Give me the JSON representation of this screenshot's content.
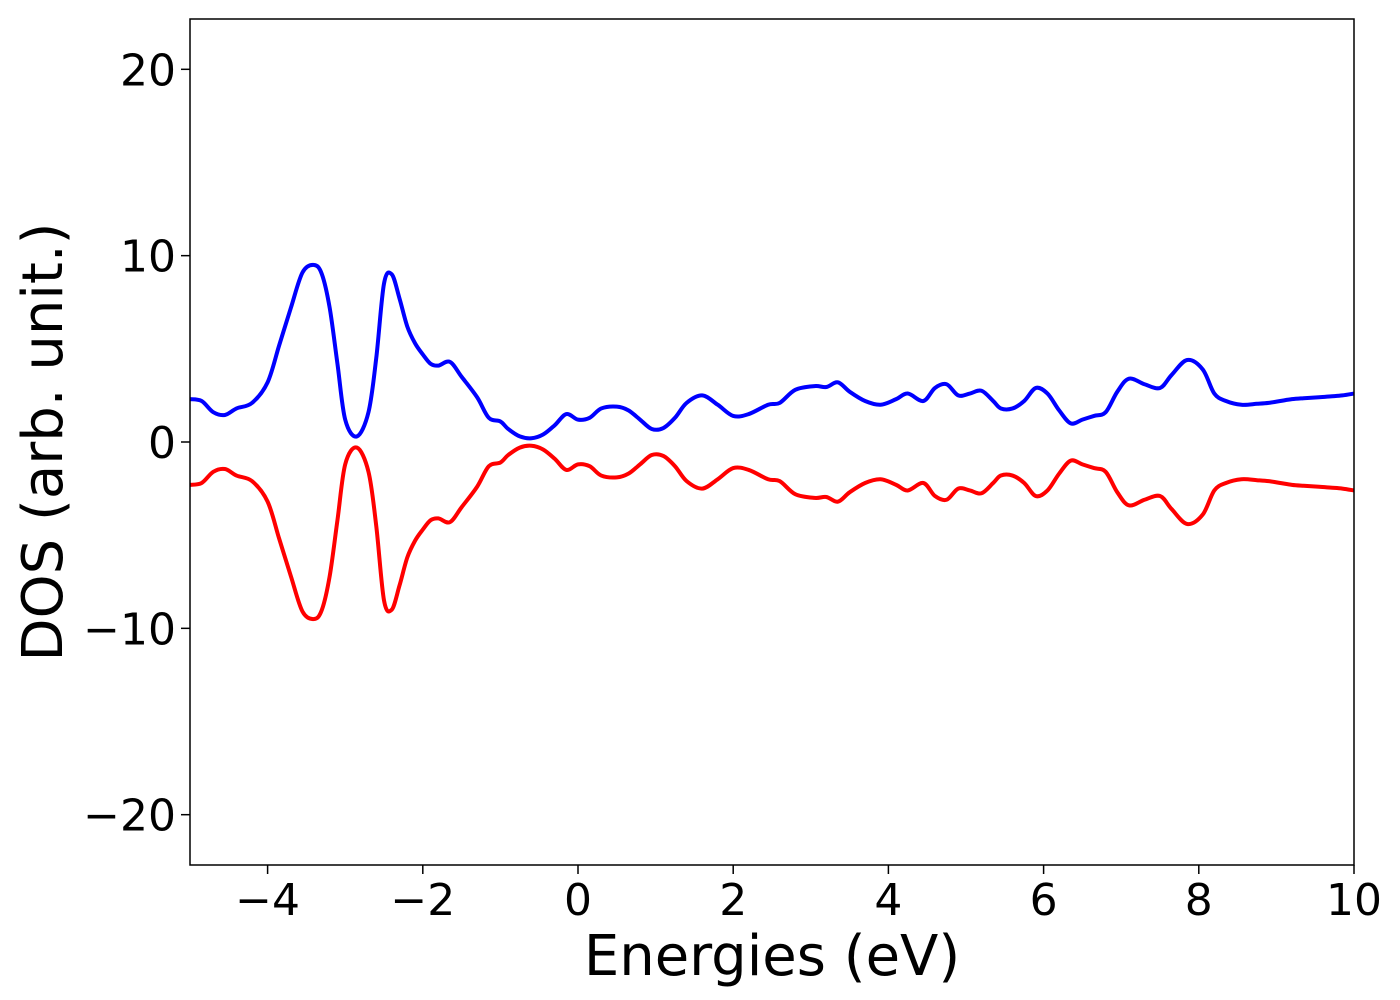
{
  "chart_data": {
    "type": "line",
    "title": "",
    "xlabel": "Energies (eV)",
    "ylabel": "DOS (arb. unit.)",
    "xlim": [
      -5,
      10
    ],
    "ylim": [
      -22.7,
      22.7
    ],
    "xticks": [
      -4,
      -2,
      0,
      2,
      4,
      6,
      8,
      10
    ],
    "xtick_labels": [
      "−4",
      "−2",
      "0",
      "2",
      "4",
      "6",
      "8",
      "10"
    ],
    "yticks": [
      -20,
      -10,
      0,
      10,
      20
    ],
    "ytick_labels": [
      "−20",
      "−10",
      "0",
      "10",
      "20"
    ],
    "grid": false,
    "legend": "none",
    "series": [
      {
        "color": "#0000ff",
        "x": [
          -5.0,
          -4.85,
          -4.7,
          -4.55,
          -4.4,
          -4.2,
          -4.0,
          -3.85,
          -3.7,
          -3.55,
          -3.4,
          -3.3,
          -3.2,
          -3.1,
          -3.0,
          -2.85,
          -2.7,
          -2.6,
          -2.5,
          -2.4,
          -2.3,
          -2.2,
          -2.1,
          -2.0,
          -1.9,
          -1.8,
          -1.65,
          -1.5,
          -1.3,
          -1.15,
          -1.0,
          -0.9,
          -0.75,
          -0.6,
          -0.45,
          -0.3,
          -0.15,
          0.0,
          0.15,
          0.3,
          0.5,
          0.65,
          0.8,
          0.95,
          1.1,
          1.25,
          1.4,
          1.6,
          1.8,
          2.0,
          2.2,
          2.45,
          2.6,
          2.8,
          3.05,
          3.2,
          3.35,
          3.5,
          3.7,
          3.9,
          4.1,
          4.25,
          4.45,
          4.6,
          4.75,
          4.9,
          5.05,
          5.2,
          5.35,
          5.45,
          5.6,
          5.75,
          5.9,
          6.05,
          6.2,
          6.35,
          6.5,
          6.65,
          6.8,
          6.95,
          7.1,
          7.3,
          7.5,
          7.65,
          7.85,
          8.05,
          8.2,
          8.35,
          8.55,
          8.75,
          8.9,
          9.05,
          9.2,
          9.35,
          9.55,
          9.7,
          9.85,
          10.0
        ],
        "y": [
          2.3,
          2.2,
          1.6,
          1.45,
          1.8,
          2.1,
          3.2,
          5.2,
          7.2,
          9.1,
          9.5,
          9.0,
          7.2,
          4.2,
          1.2,
          0.3,
          1.6,
          4.5,
          8.5,
          9.0,
          7.7,
          6.2,
          5.3,
          4.7,
          4.2,
          4.1,
          4.3,
          3.5,
          2.4,
          1.3,
          1.1,
          0.7,
          0.3,
          0.2,
          0.4,
          0.9,
          1.5,
          1.2,
          1.3,
          1.8,
          1.9,
          1.7,
          1.2,
          0.7,
          0.75,
          1.3,
          2.1,
          2.5,
          2.0,
          1.4,
          1.5,
          2.0,
          2.1,
          2.8,
          3.0,
          2.95,
          3.2,
          2.7,
          2.2,
          2.0,
          2.3,
          2.6,
          2.2,
          2.9,
          3.1,
          2.5,
          2.6,
          2.75,
          2.2,
          1.8,
          1.8,
          2.2,
          2.9,
          2.6,
          1.7,
          1.0,
          1.2,
          1.4,
          1.6,
          2.7,
          3.4,
          3.1,
          2.9,
          3.6,
          4.4,
          3.9,
          2.6,
          2.2,
          2.0,
          2.05,
          2.1,
          2.2,
          2.3,
          2.35,
          2.4,
          2.45,
          2.5,
          2.6
        ]
      },
      {
        "color": "#ff0000",
        "x": [
          -5.0,
          -4.85,
          -4.7,
          -4.55,
          -4.4,
          -4.2,
          -4.0,
          -3.85,
          -3.7,
          -3.55,
          -3.4,
          -3.3,
          -3.2,
          -3.1,
          -3.0,
          -2.85,
          -2.7,
          -2.6,
          -2.5,
          -2.4,
          -2.3,
          -2.2,
          -2.1,
          -2.0,
          -1.9,
          -1.8,
          -1.65,
          -1.5,
          -1.3,
          -1.15,
          -1.0,
          -0.9,
          -0.75,
          -0.6,
          -0.45,
          -0.3,
          -0.15,
          0.0,
          0.15,
          0.3,
          0.5,
          0.65,
          0.8,
          0.95,
          1.1,
          1.25,
          1.4,
          1.6,
          1.8,
          2.0,
          2.2,
          2.45,
          2.6,
          2.8,
          3.05,
          3.2,
          3.35,
          3.5,
          3.7,
          3.9,
          4.1,
          4.25,
          4.45,
          4.6,
          4.75,
          4.9,
          5.05,
          5.2,
          5.35,
          5.45,
          5.6,
          5.75,
          5.9,
          6.05,
          6.2,
          6.35,
          6.5,
          6.65,
          6.8,
          6.95,
          7.1,
          7.3,
          7.5,
          7.65,
          7.85,
          8.05,
          8.2,
          8.35,
          8.55,
          8.75,
          8.9,
          9.05,
          9.2,
          9.35,
          9.55,
          9.7,
          9.85,
          10.0
        ],
        "y": [
          -2.3,
          -2.2,
          -1.6,
          -1.45,
          -1.8,
          -2.1,
          -3.2,
          -5.2,
          -7.2,
          -9.1,
          -9.5,
          -9.0,
          -7.2,
          -4.2,
          -1.2,
          -0.3,
          -1.6,
          -4.5,
          -8.5,
          -9.0,
          -7.7,
          -6.2,
          -5.3,
          -4.7,
          -4.2,
          -4.1,
          -4.3,
          -3.5,
          -2.4,
          -1.3,
          -1.1,
          -0.7,
          -0.3,
          -0.2,
          -0.4,
          -0.9,
          -1.5,
          -1.2,
          -1.3,
          -1.8,
          -1.9,
          -1.7,
          -1.2,
          -0.7,
          -0.75,
          -1.3,
          -2.1,
          -2.5,
          -2.0,
          -1.4,
          -1.5,
          -2.0,
          -2.1,
          -2.8,
          -3.0,
          -2.95,
          -3.2,
          -2.7,
          -2.2,
          -2.0,
          -2.3,
          -2.6,
          -2.2,
          -2.9,
          -3.1,
          -2.5,
          -2.6,
          -2.75,
          -2.2,
          -1.8,
          -1.8,
          -2.2,
          -2.9,
          -2.6,
          -1.7,
          -1.0,
          -1.2,
          -1.4,
          -1.6,
          -2.7,
          -3.4,
          -3.1,
          -2.9,
          -3.6,
          -4.4,
          -3.9,
          -2.6,
          -2.2,
          -2.0,
          -2.05,
          -2.1,
          -2.2,
          -2.3,
          -2.35,
          -2.4,
          -2.45,
          -2.5,
          -2.6
        ]
      }
    ]
  }
}
